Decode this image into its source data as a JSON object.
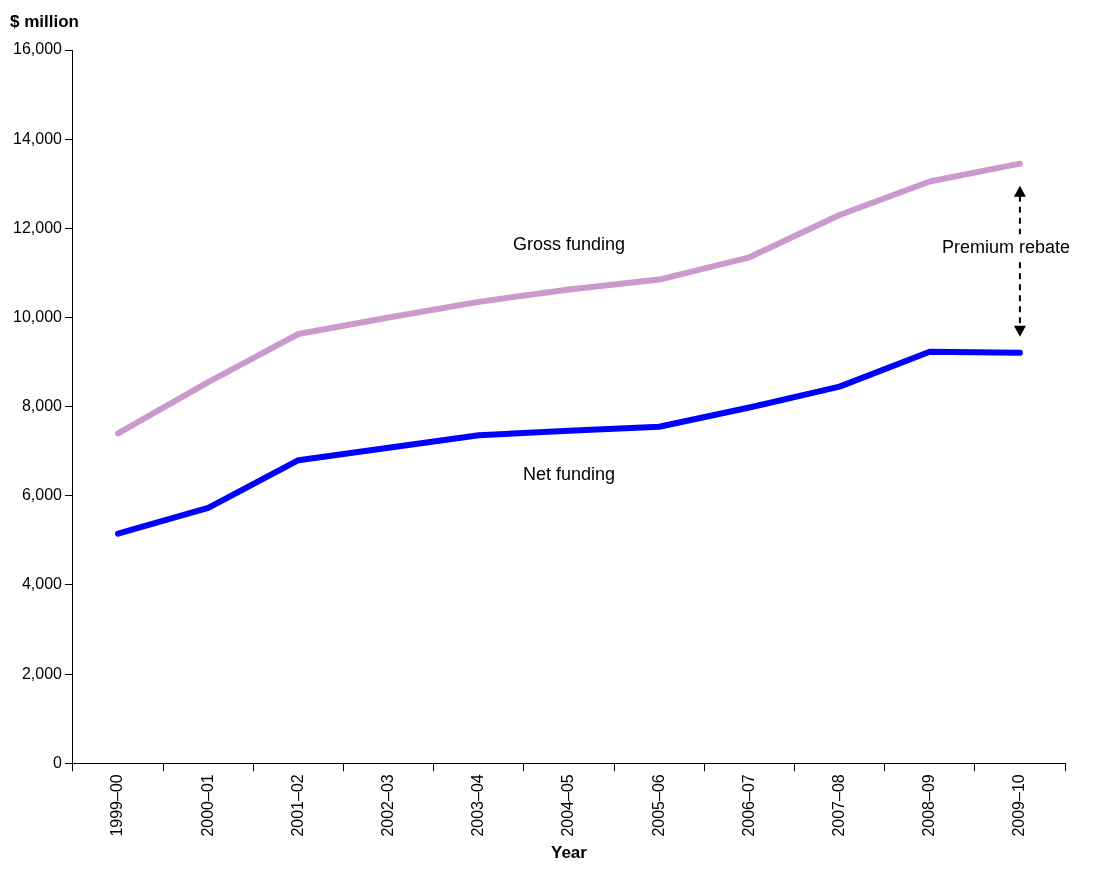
{
  "chart_data": {
    "type": "line",
    "ylabel": "$ million",
    "xlabel": "Year",
    "categories": [
      "1999–00",
      "2000–01",
      "2001–02",
      "2002–03",
      "2003–04",
      "2004–05",
      "2005–06",
      "2006–07",
      "2007–08",
      "2008–09",
      "2009–10"
    ],
    "series": [
      {
        "name": "Gross funding",
        "color": "#cc99cc",
        "values": [
          7400,
          8550,
          9630,
          10000,
          10350,
          10630,
          10850,
          11350,
          12300,
          13050,
          13450
        ]
      },
      {
        "name": "Net funding",
        "color": "#0000ff",
        "values": [
          5150,
          5730,
          6800,
          7080,
          7360,
          7460,
          7550,
          7980,
          8450,
          9230,
          9210
        ]
      }
    ],
    "annotations": [
      "Premium rebate"
    ],
    "ylim": [
      0,
      16000
    ],
    "yticks": [
      0,
      {
        "value": 2000,
        "label": "2,000"
      },
      {
        "value": 4000,
        "label": "4,000"
      },
      {
        "value": 6000,
        "label": "6,000"
      },
      {
        "value": 8000,
        "label": "8,000"
      },
      {
        "value": 10000,
        "label": "10,000"
      },
      {
        "value": 12000,
        "label": "12,000"
      },
      {
        "value": 14000,
        "label": "14,000"
      },
      {
        "value": 16000,
        "label": "16,000"
      }
    ],
    "grid": false,
    "legend": false,
    "marker": "none",
    "line_style": "solid"
  }
}
